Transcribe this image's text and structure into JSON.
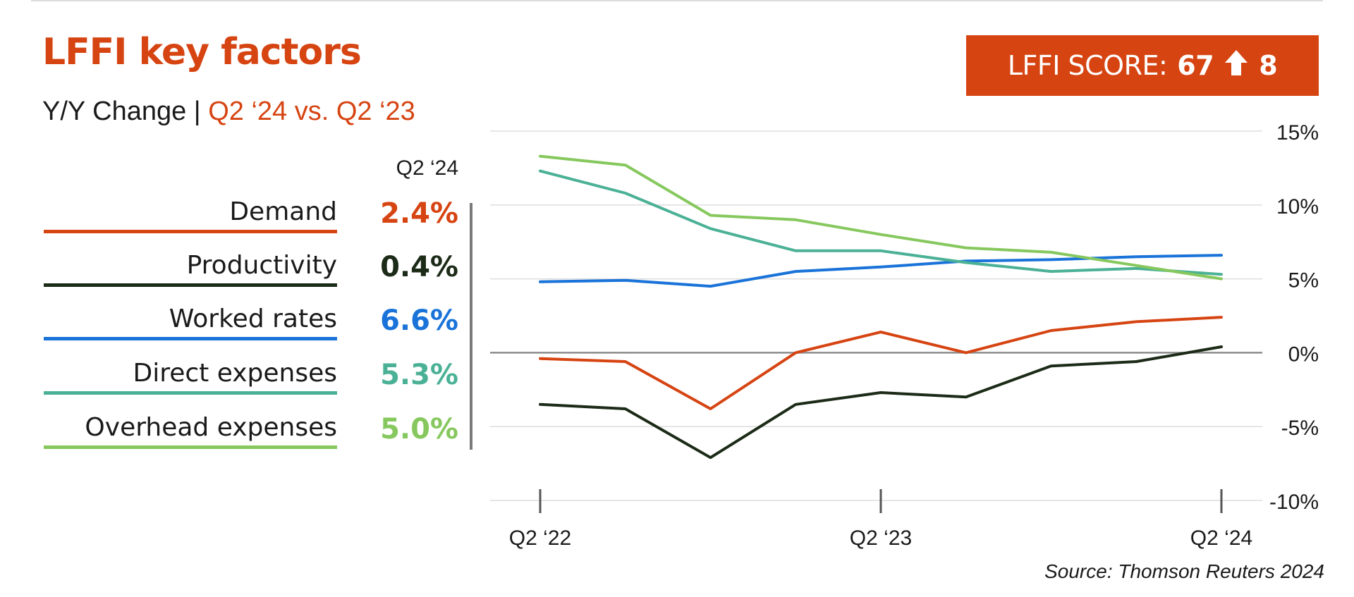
{
  "header": {
    "title": "LFFI key factors",
    "subtitle_prefix": "Y/Y Change | ",
    "subtitle_highlight": "Q2 ‘24 vs. Q2 ‘23"
  },
  "score_badge": {
    "label": "LFFI SCORE:",
    "value": "67",
    "arrow_icon": "up-arrow-icon",
    "change": "8"
  },
  "legend": {
    "column_header": "Q2 ‘24",
    "items": [
      {
        "name": "Demand",
        "value": "2.4%",
        "color": "#d64412"
      },
      {
        "name": "Productivity",
        "value": "0.4%",
        "color": "#1c2b17"
      },
      {
        "name": "Worked rates",
        "value": "6.6%",
        "color": "#1a73d9"
      },
      {
        "name": "Direct expenses",
        "value": "5.3%",
        "color": "#4bb196"
      },
      {
        "name": "Overhead expenses",
        "value": "5.0%",
        "color": "#86c85e"
      }
    ]
  },
  "source": "Source: Thomson Reuters 2024",
  "chart_data": {
    "type": "line",
    "title": "LFFI key factors",
    "subtitle": "Y/Y Change | Q2 ‘24 vs. Q2 ‘23",
    "x": [
      "Q2 ‘22",
      "Q3 ‘22",
      "Q4 ‘22",
      "Q1 ‘23",
      "Q2 ‘23",
      "Q3 ‘23",
      "Q4 ‘23",
      "Q1 ‘24",
      "Q2 ‘24"
    ],
    "x_tick_labels": [
      "Q2 ‘22",
      "Q2 ‘23",
      "Q2 ‘24"
    ],
    "y_tick_labels": [
      "15%",
      "10%",
      "5%",
      "0%",
      "-5%",
      "-10%"
    ],
    "y_ticks": [
      15,
      10,
      5,
      0,
      -5,
      -10
    ],
    "ylim": [
      -10,
      15
    ],
    "y_axis_position": "right",
    "grid": true,
    "series": [
      {
        "name": "Demand",
        "color": "#d64412",
        "values": [
          -0.4,
          -0.6,
          -3.8,
          0.0,
          1.4,
          0.0,
          1.5,
          2.1,
          2.4
        ]
      },
      {
        "name": "Productivity",
        "color": "#1c2b17",
        "values": [
          -3.5,
          -3.8,
          -7.1,
          -3.5,
          -2.7,
          -3.0,
          -0.9,
          -0.6,
          0.4
        ]
      },
      {
        "name": "Worked rates",
        "color": "#1a73d9",
        "values": [
          4.8,
          4.9,
          4.5,
          5.5,
          5.8,
          6.2,
          6.3,
          6.5,
          6.6
        ]
      },
      {
        "name": "Direct expenses",
        "color": "#4bb196",
        "values": [
          12.3,
          10.8,
          8.4,
          6.9,
          6.9,
          6.1,
          5.5,
          5.7,
          5.3
        ]
      },
      {
        "name": "Overhead expenses",
        "color": "#86c85e",
        "values": [
          13.3,
          12.7,
          9.3,
          9.0,
          8.0,
          7.1,
          6.8,
          5.9,
          5.0
        ]
      }
    ]
  }
}
